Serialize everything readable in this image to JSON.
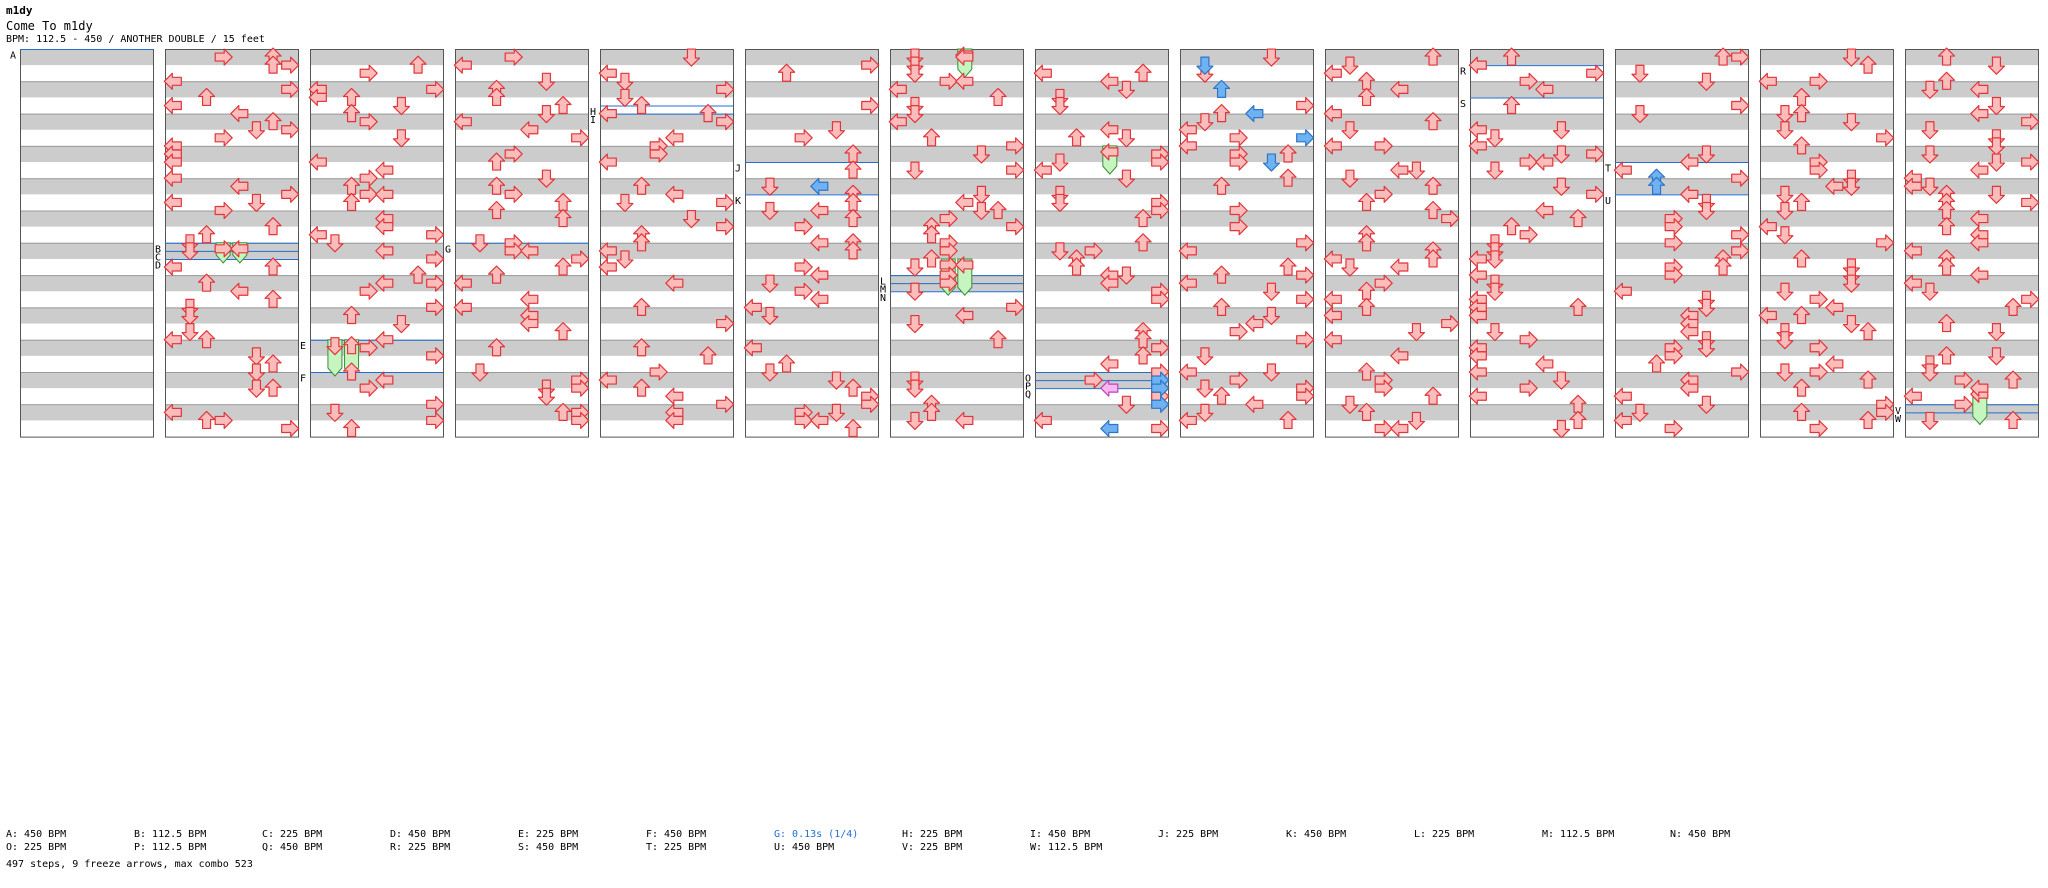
{
  "header": {
    "artist": "m1dy",
    "title": "Come To m1dy",
    "info": "BPM: 112.5 - 450 / ANOTHER DOUBLE / 15 feet"
  },
  "colors": {
    "note_fill": "#fbbcbc",
    "note_stroke": "#e0363a",
    "shock_fill": "#6fb2f2",
    "shock_stroke": "#2d75c7",
    "freeze_fill": "#c6f5c0",
    "freeze_stroke": "#3c8c3a",
    "special_fill": "#f6b8f0",
    "special_stroke": "#c040b8",
    "marker_line": "#1f6fd0",
    "stripe": "#cccccc"
  },
  "chart": {
    "columns": 14,
    "lanes_per_column": 8,
    "measures_per_column": 12
  },
  "markers": [
    {
      "label": "A",
      "col": 0,
      "measure": 0
    },
    {
      "label": "B",
      "col": 1,
      "measure": 6.0
    },
    {
      "label": "C",
      "col": 1,
      "measure": 6.25
    },
    {
      "label": "D",
      "col": 1,
      "measure": 6.5
    },
    {
      "label": "E",
      "col": 2,
      "measure": 9.0
    },
    {
      "label": "F",
      "col": 2,
      "measure": 10.0
    },
    {
      "label": "G",
      "col": 3,
      "measure": 6.0
    },
    {
      "label": "H",
      "col": 4,
      "measure": 1.75
    },
    {
      "label": "I",
      "col": 4,
      "measure": 2.0
    },
    {
      "label": "J",
      "col": 5,
      "measure": 3.5
    },
    {
      "label": "K",
      "col": 5,
      "measure": 4.5
    },
    {
      "label": "L",
      "col": 6,
      "measure": 7.0
    },
    {
      "label": "M",
      "col": 6,
      "measure": 7.25
    },
    {
      "label": "N",
      "col": 6,
      "measure": 7.5
    },
    {
      "label": "O",
      "col": 7,
      "measure": 10.0
    },
    {
      "label": "P",
      "col": 7,
      "measure": 10.25
    },
    {
      "label": "Q",
      "col": 7,
      "measure": 10.5
    },
    {
      "label": "R",
      "col": 10,
      "measure": 0.5
    },
    {
      "label": "S",
      "col": 10,
      "measure": 1.5
    },
    {
      "label": "T",
      "col": 11,
      "measure": 3.5
    },
    {
      "label": "U",
      "col": 11,
      "measure": 4.5
    },
    {
      "label": "V",
      "col": 13,
      "measure": 11.0
    },
    {
      "label": "W",
      "col": 13,
      "measure": 11.25
    }
  ],
  "freezes": [
    {
      "col": 1,
      "lane": 3,
      "from": 6.0,
      "to": 6.5
    },
    {
      "col": 1,
      "lane": 4,
      "from": 6.0,
      "to": 6.5
    },
    {
      "col": 2,
      "lane": 1,
      "from": 9.0,
      "to": 10.0
    },
    {
      "col": 2,
      "lane": 2,
      "from": 9.0,
      "to": 10.0
    },
    {
      "col": 6,
      "lane": 4,
      "from": 0.0,
      "to": 0.75
    },
    {
      "col": 6,
      "lane": 3,
      "from": 6.5,
      "to": 7.5
    },
    {
      "col": 6,
      "lane": 4,
      "from": 6.5,
      "to": 7.5
    },
    {
      "col": 7,
      "lane": 4,
      "from": 3.0,
      "to": 3.75
    },
    {
      "col": 13,
      "lane": 4,
      "from": 10.5,
      "to": 11.5
    }
  ],
  "special_notes": [
    {
      "col": 7,
      "pos": 10.5,
      "lane": 4,
      "dir": "left",
      "kind": "special"
    },
    {
      "col": 5,
      "pos": 4.25,
      "lane": 4,
      "dir": "left",
      "kind": "shock"
    },
    {
      "col": 8,
      "pos": 0.5,
      "lane": 1,
      "dir": "down",
      "kind": "shock"
    },
    {
      "col": 8,
      "pos": 1.25,
      "lane": 2,
      "dir": "up",
      "kind": "shock"
    },
    {
      "col": 8,
      "pos": 2.0,
      "lane": 4,
      "dir": "left",
      "kind": "shock"
    },
    {
      "col": 8,
      "pos": 2.75,
      "lane": 7,
      "dir": "right",
      "kind": "shock"
    },
    {
      "col": 8,
      "pos": 3.5,
      "lane": 5,
      "dir": "down",
      "kind": "shock"
    },
    {
      "col": 7,
      "pos": 10.25,
      "lane": 7,
      "dir": "right",
      "kind": "shock"
    },
    {
      "col": 7,
      "pos": 10.5,
      "lane": 7,
      "dir": "right",
      "kind": "shock"
    },
    {
      "col": 7,
      "pos": 11.0,
      "lane": 7,
      "dir": "right",
      "kind": "shock"
    },
    {
      "col": 7,
      "pos": 11.75,
      "lane": 4,
      "dir": "left",
      "kind": "shock"
    },
    {
      "col": 11,
      "pos": 4.0,
      "lane": 2,
      "dir": "up",
      "kind": "shock"
    },
    {
      "col": 11,
      "pos": 4.25,
      "lane": 2,
      "dir": "up",
      "kind": "shock"
    }
  ],
  "legend": [
    {
      "text": "A: 450 BPM"
    },
    {
      "text": "B: 112.5 BPM"
    },
    {
      "text": "C: 225 BPM"
    },
    {
      "text": "D: 450 BPM"
    },
    {
      "text": "E: 225 BPM"
    },
    {
      "text": "F: 450 BPM"
    },
    {
      "text": "G: 0.13s (1/4)",
      "stop": true
    },
    {
      "text": "H: 225 BPM"
    },
    {
      "text": "I: 450 BPM"
    },
    {
      "text": "J: 225 BPM"
    },
    {
      "text": "K: 450 BPM"
    },
    {
      "text": "L: 225 BPM"
    },
    {
      "text": "M: 112.5 BPM"
    },
    {
      "text": "N: 450 BPM"
    },
    {
      "text": "O: 225 BPM"
    },
    {
      "text": "P: 112.5 BPM"
    },
    {
      "text": "Q: 450 BPM"
    },
    {
      "text": "R: 225 BPM"
    },
    {
      "text": "S: 450 BPM"
    },
    {
      "text": "T: 225 BPM"
    },
    {
      "text": "U: 450 BPM"
    },
    {
      "text": "V: 225 BPM"
    },
    {
      "text": "W: 112.5 BPM"
    }
  ],
  "stats": "497 steps, 9 freeze arrows, max combo 523"
}
